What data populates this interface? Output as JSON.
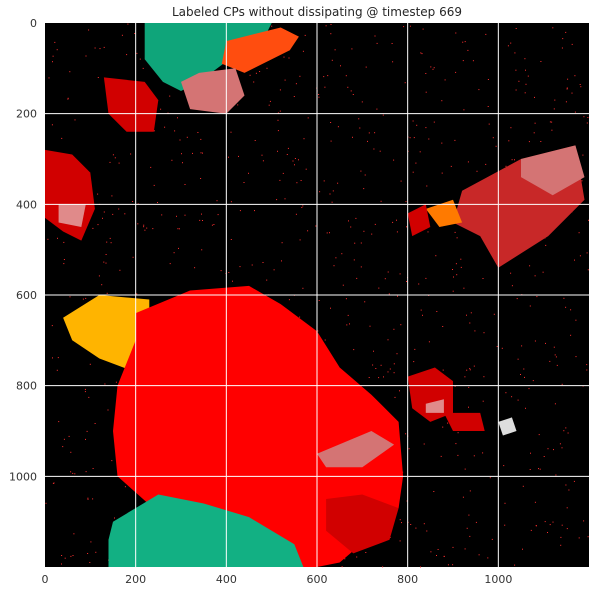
{
  "chart_data": {
    "type": "heatmap",
    "title": "Labeled CPs without dissipating @ timestep 669",
    "xlabel": "",
    "ylabel": "",
    "xlim": [
      0,
      1200
    ],
    "ylim": [
      1200,
      0
    ],
    "x_ticks": [
      0,
      200,
      400,
      600,
      800,
      1000
    ],
    "y_ticks": [
      0,
      200,
      400,
      600,
      800,
      1000
    ],
    "grid": true,
    "background_color": "#000000",
    "grid_color": "#ffffff",
    "colors": {
      "green": "#0fa57a",
      "green_light": "#12b083",
      "orange_red": "#ff4d0f",
      "orange": "#ff7a00",
      "amber": "#ffb400",
      "red": "#ff0000",
      "red_dark": "#d10000",
      "red_mid": "#c82828",
      "pink": "#d47474",
      "salmon": "#e08a8a",
      "grey_white": "#dddddd"
    },
    "regions": [
      {
        "label": "green-top",
        "color": "green",
        "points": [
          [
            220,
            0
          ],
          [
            500,
            0
          ],
          [
            480,
            40
          ],
          [
            420,
            70
          ],
          [
            340,
            130
          ],
          [
            300,
            150
          ],
          [
            260,
            130
          ],
          [
            220,
            80
          ]
        ]
      },
      {
        "label": "orange-red-top",
        "color": "orange_red",
        "points": [
          [
            400,
            40
          ],
          [
            520,
            10
          ],
          [
            560,
            30
          ],
          [
            540,
            60
          ],
          [
            440,
            110
          ],
          [
            390,
            90
          ]
        ]
      },
      {
        "label": "pink-top",
        "color": "pink",
        "points": [
          [
            300,
            130
          ],
          [
            340,
            110
          ],
          [
            420,
            100
          ],
          [
            440,
            160
          ],
          [
            400,
            200
          ],
          [
            320,
            190
          ]
        ]
      },
      {
        "label": "red-topleft",
        "color": "red_dark",
        "points": [
          [
            130,
            120
          ],
          [
            220,
            130
          ],
          [
            250,
            170
          ],
          [
            240,
            240
          ],
          [
            180,
            240
          ],
          [
            140,
            200
          ]
        ]
      },
      {
        "label": "red-left",
        "color": "red_dark",
        "points": [
          [
            0,
            280
          ],
          [
            60,
            290
          ],
          [
            100,
            330
          ],
          [
            110,
            410
          ],
          [
            80,
            480
          ],
          [
            40,
            460
          ],
          [
            0,
            430
          ]
        ]
      },
      {
        "label": "pink-left",
        "color": "salmon",
        "points": [
          [
            30,
            400
          ],
          [
            90,
            400
          ],
          [
            80,
            450
          ],
          [
            30,
            440
          ]
        ]
      },
      {
        "label": "red-right",
        "color": "red_mid",
        "points": [
          [
            920,
            370
          ],
          [
            1050,
            300
          ],
          [
            1170,
            270
          ],
          [
            1190,
            390
          ],
          [
            1110,
            470
          ],
          [
            1000,
            540
          ],
          [
            960,
            470
          ],
          [
            900,
            440
          ]
        ]
      },
      {
        "label": "pink-right",
        "color": "pink",
        "points": [
          [
            1050,
            300
          ],
          [
            1170,
            270
          ],
          [
            1190,
            340
          ],
          [
            1120,
            380
          ],
          [
            1050,
            340
          ]
        ]
      },
      {
        "label": "orange-right",
        "color": "orange",
        "points": [
          [
            840,
            410
          ],
          [
            900,
            390
          ],
          [
            920,
            440
          ],
          [
            870,
            450
          ]
        ]
      },
      {
        "label": "red-right-small",
        "color": "red_dark",
        "points": [
          [
            800,
            420
          ],
          [
            840,
            400
          ],
          [
            850,
            450
          ],
          [
            810,
            470
          ]
        ]
      },
      {
        "label": "amber-left",
        "color": "amber",
        "points": [
          [
            40,
            650
          ],
          [
            120,
            600
          ],
          [
            230,
            610
          ],
          [
            230,
            720
          ],
          [
            200,
            770
          ],
          [
            120,
            740
          ],
          [
            60,
            700
          ]
        ]
      },
      {
        "label": "red-big",
        "color": "red",
        "points": [
          [
            200,
            640
          ],
          [
            320,
            590
          ],
          [
            450,
            580
          ],
          [
            520,
            620
          ],
          [
            600,
            680
          ],
          [
            650,
            760
          ],
          [
            720,
            820
          ],
          [
            780,
            880
          ],
          [
            790,
            1000
          ],
          [
            780,
            1070
          ],
          [
            720,
            1130
          ],
          [
            650,
            1190
          ],
          [
            600,
            1200
          ],
          [
            400,
            1200
          ],
          [
            300,
            1150
          ],
          [
            250,
            1080
          ],
          [
            160,
            1000
          ],
          [
            150,
            900
          ],
          [
            160,
            800
          ],
          [
            200,
            700
          ]
        ]
      },
      {
        "label": "red-lower-right-dark",
        "color": "red_dark",
        "points": [
          [
            620,
            1050
          ],
          [
            700,
            1040
          ],
          [
            780,
            1070
          ],
          [
            760,
            1140
          ],
          [
            680,
            1170
          ],
          [
            620,
            1120
          ]
        ]
      },
      {
        "label": "pink-lower-right",
        "color": "pink",
        "points": [
          [
            600,
            950
          ],
          [
            720,
            900
          ],
          [
            770,
            930
          ],
          [
            700,
            980
          ],
          [
            620,
            980
          ]
        ]
      },
      {
        "label": "green-bottom",
        "color": "green_light",
        "points": [
          [
            150,
            1100
          ],
          [
            250,
            1040
          ],
          [
            350,
            1060
          ],
          [
            450,
            1090
          ],
          [
            550,
            1150
          ],
          [
            570,
            1200
          ],
          [
            140,
            1200
          ],
          [
            140,
            1140
          ]
        ]
      },
      {
        "label": "red-right-blob",
        "color": "red_dark",
        "points": [
          [
            800,
            780
          ],
          [
            860,
            760
          ],
          [
            900,
            790
          ],
          [
            900,
            860
          ],
          [
            850,
            880
          ],
          [
            810,
            850
          ]
        ]
      },
      {
        "label": "pink-right-blob",
        "color": "salmon",
        "points": [
          [
            840,
            840
          ],
          [
            880,
            830
          ],
          [
            880,
            860
          ],
          [
            840,
            860
          ]
        ]
      },
      {
        "label": "red-right-tail",
        "color": "red_dark",
        "points": [
          [
            880,
            860
          ],
          [
            960,
            860
          ],
          [
            970,
            900
          ],
          [
            900,
            900
          ]
        ]
      },
      {
        "label": "grey-spot",
        "color": "grey_white",
        "points": [
          [
            1000,
            880
          ],
          [
            1030,
            870
          ],
          [
            1040,
            900
          ],
          [
            1010,
            910
          ]
        ]
      }
    ]
  }
}
